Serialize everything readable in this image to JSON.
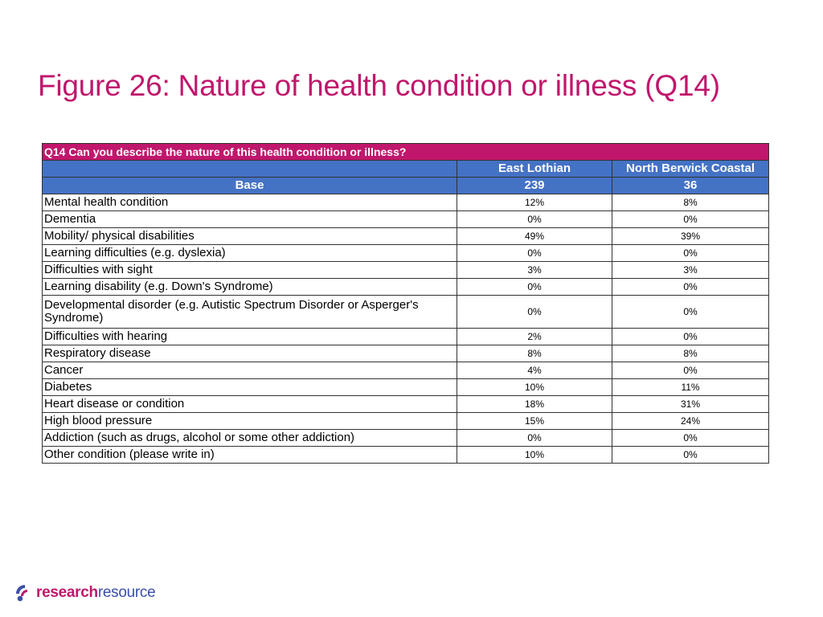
{
  "title": "Figure 26: Nature of health condition or illness (Q14)",
  "table": {
    "question": "Q14 Can you describe the nature of this health condition or illness?",
    "columns": [
      "East Lothian",
      "North Berwick Coastal"
    ],
    "base": {
      "label": "Base",
      "values": [
        "239",
        "36"
      ]
    },
    "rows": [
      {
        "label": "Mental health condition",
        "values": [
          "12%",
          "8%"
        ]
      },
      {
        "label": "Dementia",
        "values": [
          "0%",
          "0%"
        ]
      },
      {
        "label": "Mobility/ physical disabilities",
        "values": [
          "49%",
          "39%"
        ]
      },
      {
        "label": "Learning difficulties (e.g. dyslexia)",
        "values": [
          "0%",
          "0%"
        ]
      },
      {
        "label": "Difficulties with sight",
        "values": [
          "3%",
          "3%"
        ]
      },
      {
        "label": "Learning disability (e.g. Down's Syndrome)",
        "values": [
          "0%",
          "0%"
        ]
      },
      {
        "label": "Developmental disorder (e.g. Autistic Spectrum Disorder or Asperger's Syndrome)",
        "values": [
          "0%",
          "0%"
        ]
      },
      {
        "label": "Difficulties with hearing",
        "values": [
          "2%",
          "0%"
        ]
      },
      {
        "label": "Respiratory disease",
        "values": [
          "8%",
          "8%"
        ]
      },
      {
        "label": "Cancer",
        "values": [
          "4%",
          "0%"
        ]
      },
      {
        "label": "Diabetes",
        "values": [
          "10%",
          "11%"
        ]
      },
      {
        "label": "Heart disease or condition",
        "values": [
          "18%",
          "31%"
        ]
      },
      {
        "label": "High blood pressure",
        "values": [
          "15%",
          "24%"
        ]
      },
      {
        "label": "Addiction (such as drugs, alcohol or some other addiction)",
        "values": [
          "0%",
          "0%"
        ]
      },
      {
        "label": "Other condition (please write in)",
        "values": [
          "10%",
          "0%"
        ]
      }
    ]
  },
  "logo": {
    "text_bold": "research",
    "text_regular": "resource",
    "icon": "research-resource-logo-icon"
  },
  "colors": {
    "accent": "#c0176c",
    "header_blue": "#4472c4",
    "logo_blue": "#3b4fa6"
  }
}
